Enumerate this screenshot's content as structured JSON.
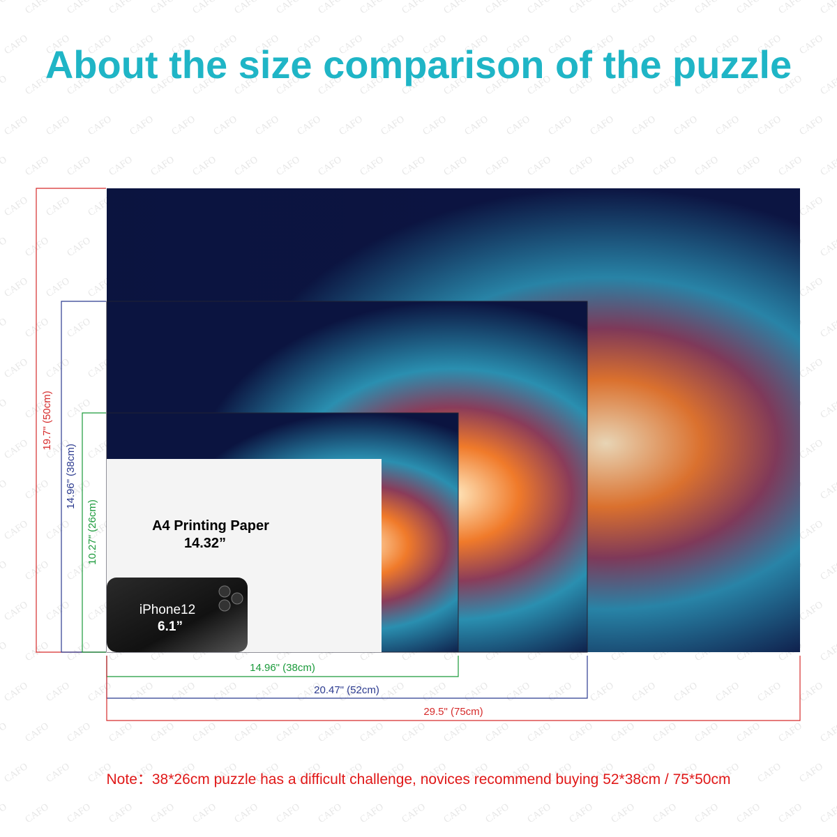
{
  "header": {
    "title": "About the size comparison of the puzzle"
  },
  "watermark": "CAFO",
  "heights": [
    "19.7\" (50cm)",
    "14.96\" (38cm)",
    "10.27\" (26cm)"
  ],
  "widths": [
    "14.96\" (38cm)",
    "20.47\" (52cm)",
    "29.5\" (75cm)"
  ],
  "paper": {
    "name": "A4 Printing Paper",
    "size": "14.32”"
  },
  "phone": {
    "name": "iPhone12",
    "size": "6.1”"
  },
  "note": "Note：38*26cm puzzle has a difficult challenge, novices recommend buying 52*38cm / 75*50cm"
}
